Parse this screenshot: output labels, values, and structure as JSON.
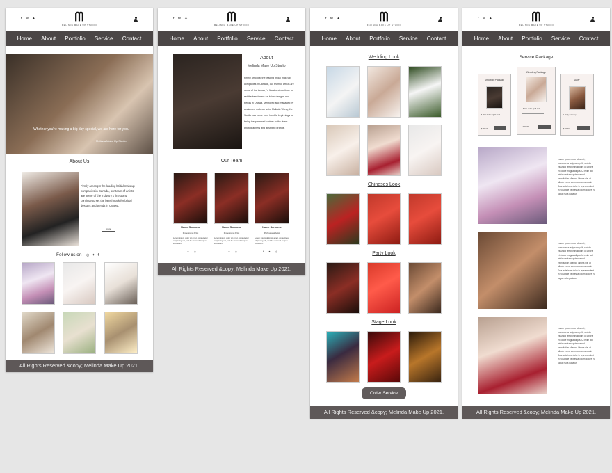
{
  "logo": {
    "sub": "MELINDA MAKE UP STUDIO"
  },
  "social_mini": "f ✉ ✦",
  "nav": {
    "home": "Home",
    "about": "About",
    "portfolio": "Portfolio",
    "service": "Service",
    "contact": "Contact"
  },
  "footer": "All Rights Reserved &copy; Melinda Make Up 2021.",
  "home": {
    "hero_caption": "Whether you're making a big day special, we are here for you.",
    "hero_credit": "Melinda Make Up Studio",
    "about_heading": "About Us",
    "about_text": "Firmly amongst the leading bridal makeup companies in Canada, our team of artists are some of the industry's finest and continue to set the benchmark for bridal designs and trends in Ottawa.",
    "more_button": "more",
    "follow_label": "Follow us on"
  },
  "about": {
    "heading": "About",
    "subheading": "Melinda Make Up Studio",
    "paragraph": "Firmly amongst the leading bridal makeup companies in Canada, our team of artists are some of the industry's finest and continue to set the benchmark for bridal designs and trends in Ottawa. Mentored and managed by acclaimed makeup artist Melinda Wong, the Studio has come from humble beginnings to being the preferred partner to the finest photographers and aesthetic brands.",
    "team_heading": "Our Team",
    "team": [
      {
        "name": "Name Surname",
        "role": "Professional Artist",
        "bio": "Lorem ipsum dolor sit amet, consectetur adipiscing elit, sed do eiusmod tempor incididunt."
      },
      {
        "name": "Name Surname",
        "role": "Professional Artist",
        "bio": "Lorem ipsum dolor sit amet, consectetur adipiscing elit, sed do eiusmod tempor incididunt."
      },
      {
        "name": "Name Surname",
        "role": "Professional Artist",
        "bio": "Lorem ipsum dolor sit amet, consectetur adipiscing elit, sed do eiusmod tempor incididunt."
      }
    ]
  },
  "portfolio": {
    "sections": [
      "Wedding Look",
      "Chineses Look",
      "Party Look",
      "Stage Look"
    ],
    "order_button": "Order Service"
  },
  "service": {
    "heading": "Service Package",
    "packages": [
      {
        "title": "Shooting Package",
        "line": "1 Hair make up & look",
        "price": "$ 300.00"
      },
      {
        "title": "Wedding Package",
        "line": "1 Bride make up & look",
        "price": "$ 600.00"
      },
      {
        "title": "Daily",
        "line": "1 Daily make up",
        "price": "$ 60.00"
      }
    ],
    "lorem": "Lorem ipsum dolor sit amet, consectetur adipiscing elit, sed do eiusmod tempor incididunt ut labore et dolore magna aliqua. Ut enim ad minim veniam, quis nostrud exercitation ullamco laboris nisi ut aliquip ex ea commodo consequat. Duis aute irure dolor in reprehenderit in voluptate velit esse cillum dolore eu fugiat nulla pariatur."
  }
}
